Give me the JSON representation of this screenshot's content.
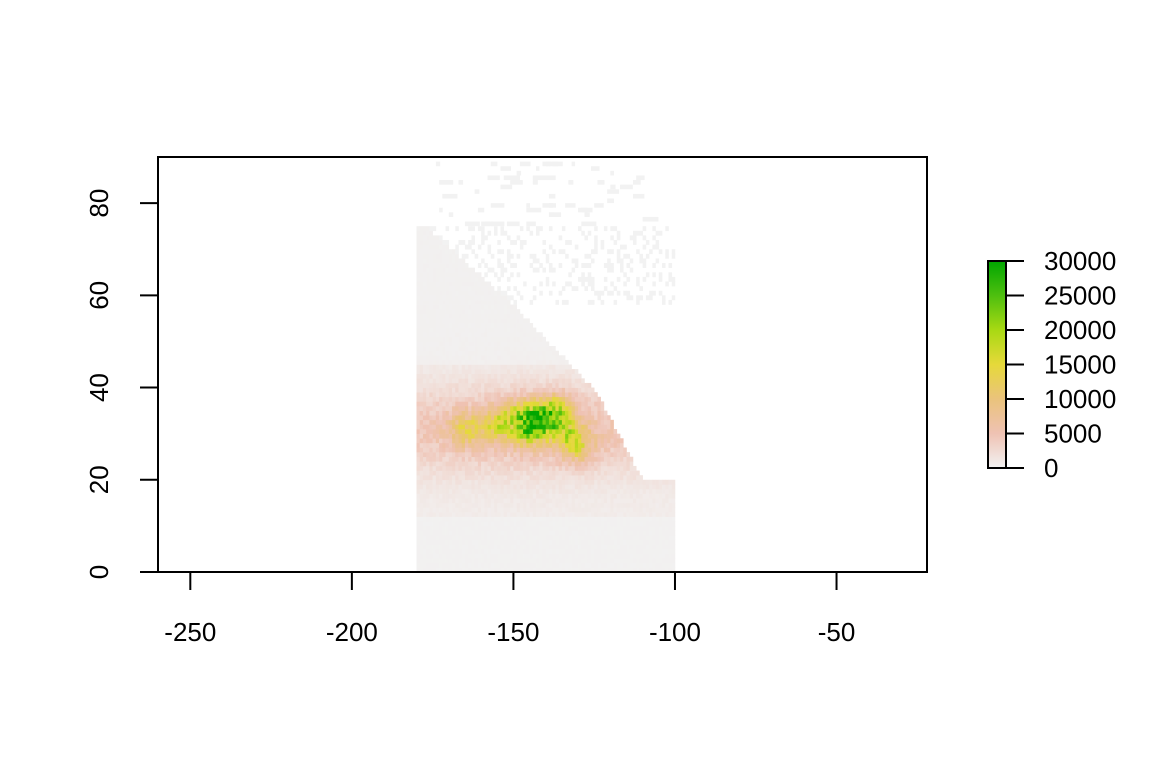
{
  "chart_data": {
    "type": "heatmap",
    "title": "",
    "xlabel": "",
    "ylabel": "",
    "xlim": [
      -260,
      -22
    ],
    "ylim": [
      0,
      90
    ],
    "x_ticks": [
      -250,
      -200,
      -150,
      -100,
      -50
    ],
    "y_ticks": [
      0,
      20,
      40,
      60,
      80
    ],
    "x_tick_labels": [
      "-250",
      "-200",
      "-150",
      "-100",
      "-50"
    ],
    "y_tick_labels": [
      "0",
      "20",
      "40",
      "60",
      "80"
    ],
    "grid": false,
    "raster_extent": {
      "xmin": -180,
      "xmax": -100,
      "ymin": 0,
      "ymax": 75
    },
    "value_range": [
      0,
      30000
    ],
    "legend": {
      "placement": "right",
      "ticks": [
        0,
        5000,
        10000,
        15000,
        20000,
        25000,
        30000
      ],
      "tick_labels": [
        "0",
        "5000",
        "10000",
        "15000",
        "20000",
        "25000",
        "30000"
      ]
    },
    "color_scale": [
      "#f2f2f2",
      "#efc2b3",
      "#eac37c",
      "#e6d93a",
      "#a8d913",
      "#4ebf0f",
      "#00a600"
    ],
    "hotspots": [
      {
        "x": -141,
        "y": 33,
        "value": 28000
      },
      {
        "x": -145,
        "y": 31,
        "value": 22000
      },
      {
        "x": -137,
        "y": 35,
        "value": 20000
      },
      {
        "x": -155,
        "y": 32,
        "value": 17000
      },
      {
        "x": -165,
        "y": 31,
        "value": 14000
      },
      {
        "x": -133,
        "y": 30,
        "value": 15000
      },
      {
        "x": -148,
        "y": 34,
        "value": 16000
      },
      {
        "x": -130,
        "y": 27,
        "value": 13000
      }
    ]
  }
}
